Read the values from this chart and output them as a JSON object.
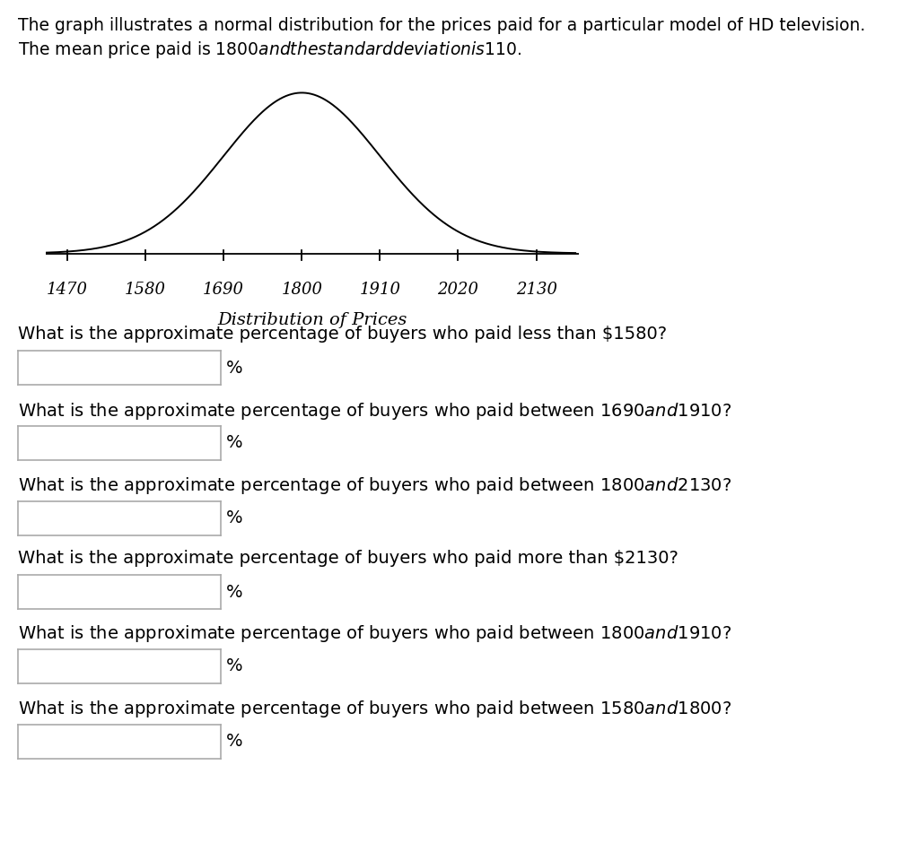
{
  "header_line1": "The graph illustrates a normal distribution for the prices paid for a particular model of HD television.",
  "header_line2": "The mean price paid is $1800 and the standard deviation is $110.",
  "mean": 1800,
  "std": 110,
  "x_ticks": [
    1470,
    1580,
    1690,
    1800,
    1910,
    2020,
    2130
  ],
  "chart_title": "Distribution of Prices",
  "questions": [
    "What is the approximate percentage of buyers who paid less than $1580?",
    "What is the approximate percentage of buyers who paid between $1690 and $1910?",
    "What is the approximate percentage of buyers who paid between $1800 and $2130?",
    "What is the approximate percentage of buyers who paid more than $2130?",
    "What is the approximate percentage of buyers who paid between $1800 and $1910?",
    "What is the approximate percentage of buyers who paid between $1580 and $1800?"
  ],
  "background_color": "#ffffff",
  "curve_color": "#000000",
  "axis_color": "#000000",
  "text_color": "#000000",
  "box_edge_color": "#aaaaaa",
  "header_fontsize": 13.5,
  "question_fontsize": 14,
  "tick_fontsize": 13,
  "title_fontsize": 14
}
